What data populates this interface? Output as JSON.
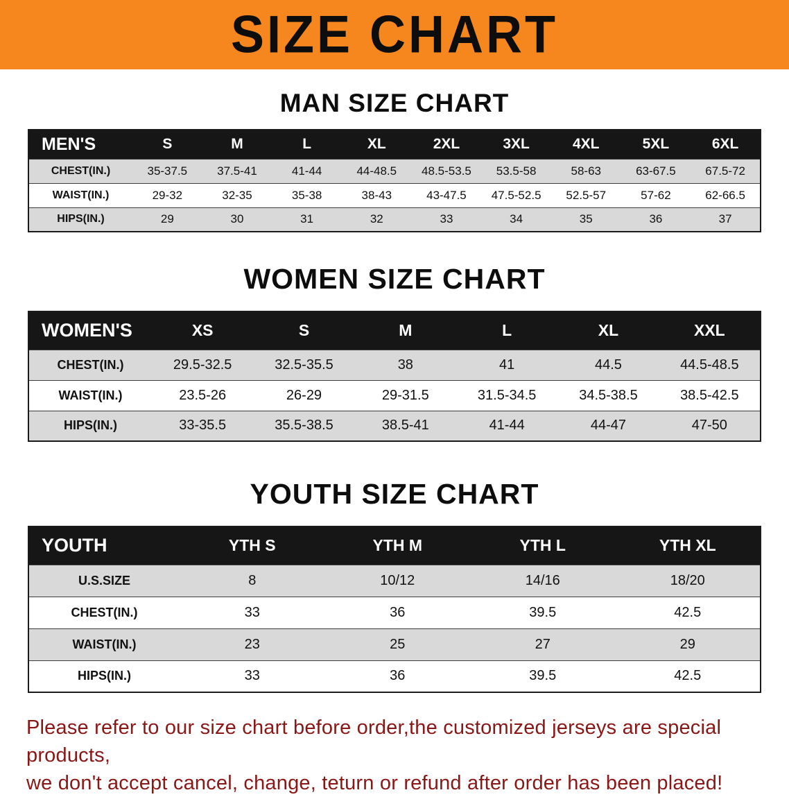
{
  "banner": {
    "title": "SIZE CHART"
  },
  "colors": {
    "banner_bg": "#F6871E",
    "header_bg": "#161616",
    "stripe": "#D9D9D9",
    "footer_text": "#8B1616"
  },
  "sections": {
    "men": {
      "heading": "MAN SIZE CHART",
      "header": [
        "MEN'S",
        "S",
        "M",
        "L",
        "XL",
        "2XL",
        "3XL",
        "4XL",
        "5XL",
        "6XL"
      ],
      "rows": [
        [
          "CHEST(IN.)",
          "35-37.5",
          "37.5-41",
          "41-44",
          "44-48.5",
          "48.5-53.5",
          "53.5-58",
          "58-63",
          "63-67.5",
          "67.5-72"
        ],
        [
          "WAIST(IN.)",
          "29-32",
          "32-35",
          "35-38",
          "38-43",
          "43-47.5",
          "47.5-52.5",
          "52.5-57",
          "57-62",
          "62-66.5"
        ],
        [
          "HIPS(IN.)",
          "29",
          "30",
          "31",
          "32",
          "33",
          "34",
          "35",
          "36",
          "37"
        ]
      ]
    },
    "women": {
      "heading": "WOMEN SIZE CHART",
      "header": [
        "WOMEN'S",
        "XS",
        "S",
        "M",
        "L",
        "XL",
        "XXL"
      ],
      "rows": [
        [
          "CHEST(IN.)",
          "29.5-32.5",
          "32.5-35.5",
          "38",
          "41",
          "44.5",
          "44.5-48.5"
        ],
        [
          "WAIST(IN.)",
          "23.5-26",
          "26-29",
          "29-31.5",
          "31.5-34.5",
          "34.5-38.5",
          "38.5-42.5"
        ],
        [
          "HIPS(IN.)",
          "33-35.5",
          "35.5-38.5",
          "38.5-41",
          "41-44",
          "44-47",
          "47-50"
        ]
      ]
    },
    "youth": {
      "heading": "YOUTH SIZE CHART",
      "header": [
        "YOUTH",
        "YTH S",
        "YTH M",
        "YTH L",
        "YTH XL"
      ],
      "rows": [
        [
          "U.S.SIZE",
          "8",
          "10/12",
          "14/16",
          "18/20"
        ],
        [
          "CHEST(IN.)",
          "33",
          "36",
          "39.5",
          "42.5"
        ],
        [
          "WAIST(IN.)",
          "23",
          "25",
          "27",
          "29"
        ],
        [
          "HIPS(IN.)",
          "33",
          "36",
          "39.5",
          "42.5"
        ]
      ]
    }
  },
  "footer": {
    "line1": "Please refer to our size chart before order,the customized jerseys are special products,",
    "line2": "we don't accept cancel, change, teturn or refund after order has been placed!"
  }
}
